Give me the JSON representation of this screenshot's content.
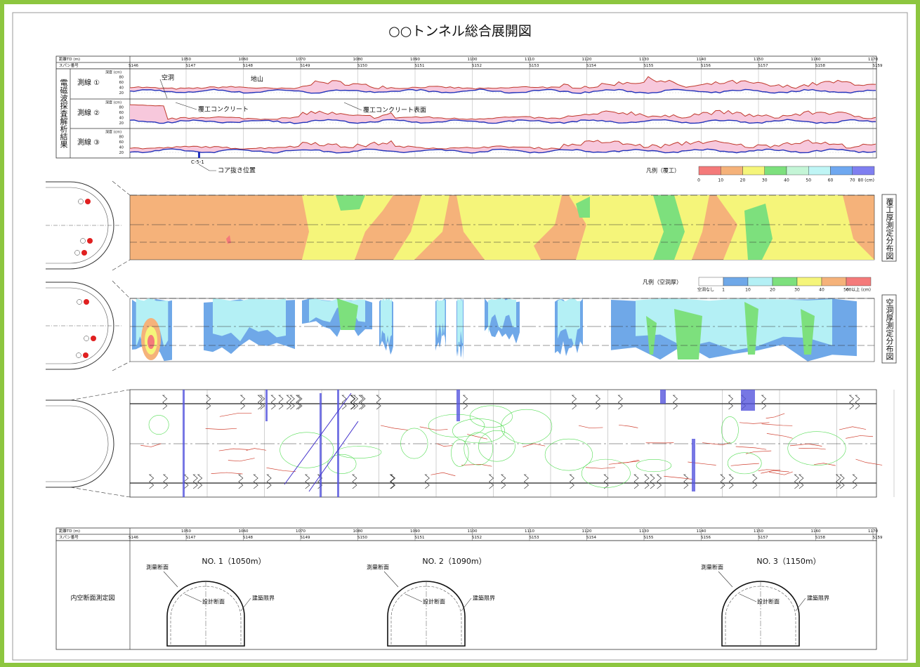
{
  "title": "○○トンネル総合展開図",
  "header": {
    "distance_label": "距離TD (m)",
    "span_label": "スパン番号",
    "distances": [
      "1050",
      "1060",
      "1070",
      "1080",
      "1090",
      "1100",
      "1110",
      "1120",
      "1130",
      "1140",
      "1150",
      "1160",
      "1170"
    ],
    "spans": [
      "S146",
      "S147",
      "S148",
      "S149",
      "S150",
      "S151",
      "S152",
      "S153",
      "S154",
      "S155",
      "S156",
      "S157",
      "S158",
      "S159"
    ]
  },
  "radar": {
    "group_label": "電磁波探査解析結果",
    "depth_label": "深度 (cm)",
    "depth_ticks": [
      "80",
      "60",
      "40",
      "20"
    ],
    "lines": [
      "測線 ①",
      "測線 ②",
      "測線 ③"
    ],
    "annotations": {
      "void": "空洞",
      "ground": "地山",
      "lining": "覆工コンクリート",
      "surface": "覆工コンクリート表面",
      "core_id": "C-5-1",
      "core": "コア抜き位置"
    }
  },
  "lining_thickness": {
    "label": "覆工厚測定分布図",
    "legend_title": "凡例（覆工）",
    "legend_ticks": [
      "0",
      "10",
      "20",
      "30",
      "40",
      "50",
      "60",
      "70",
      "80 (cm)"
    ]
  },
  "void_thickness": {
    "label": "空洞厚測定分布図",
    "legend_title": "凡例（空洞厚）",
    "legend_ticks": [
      "空洞なし",
      "1",
      "10",
      "20",
      "30",
      "40",
      "50",
      "60以上 (cm)"
    ]
  },
  "cross_sections": {
    "label": "内空断面測定図",
    "sections": [
      {
        "title": "NO. 1（1050m）",
        "survey": "測量断面",
        "design": "設計断面",
        "clearance": "建築限界"
      },
      {
        "title": "NO. 2（1090m）",
        "survey": "測量断面",
        "design": "設計断面",
        "clearance": "建築限界"
      },
      {
        "title": "NO. 3（1150m）",
        "survey": "測量断面",
        "design": "設計断面",
        "clearance": "建築限界"
      }
    ]
  }
}
